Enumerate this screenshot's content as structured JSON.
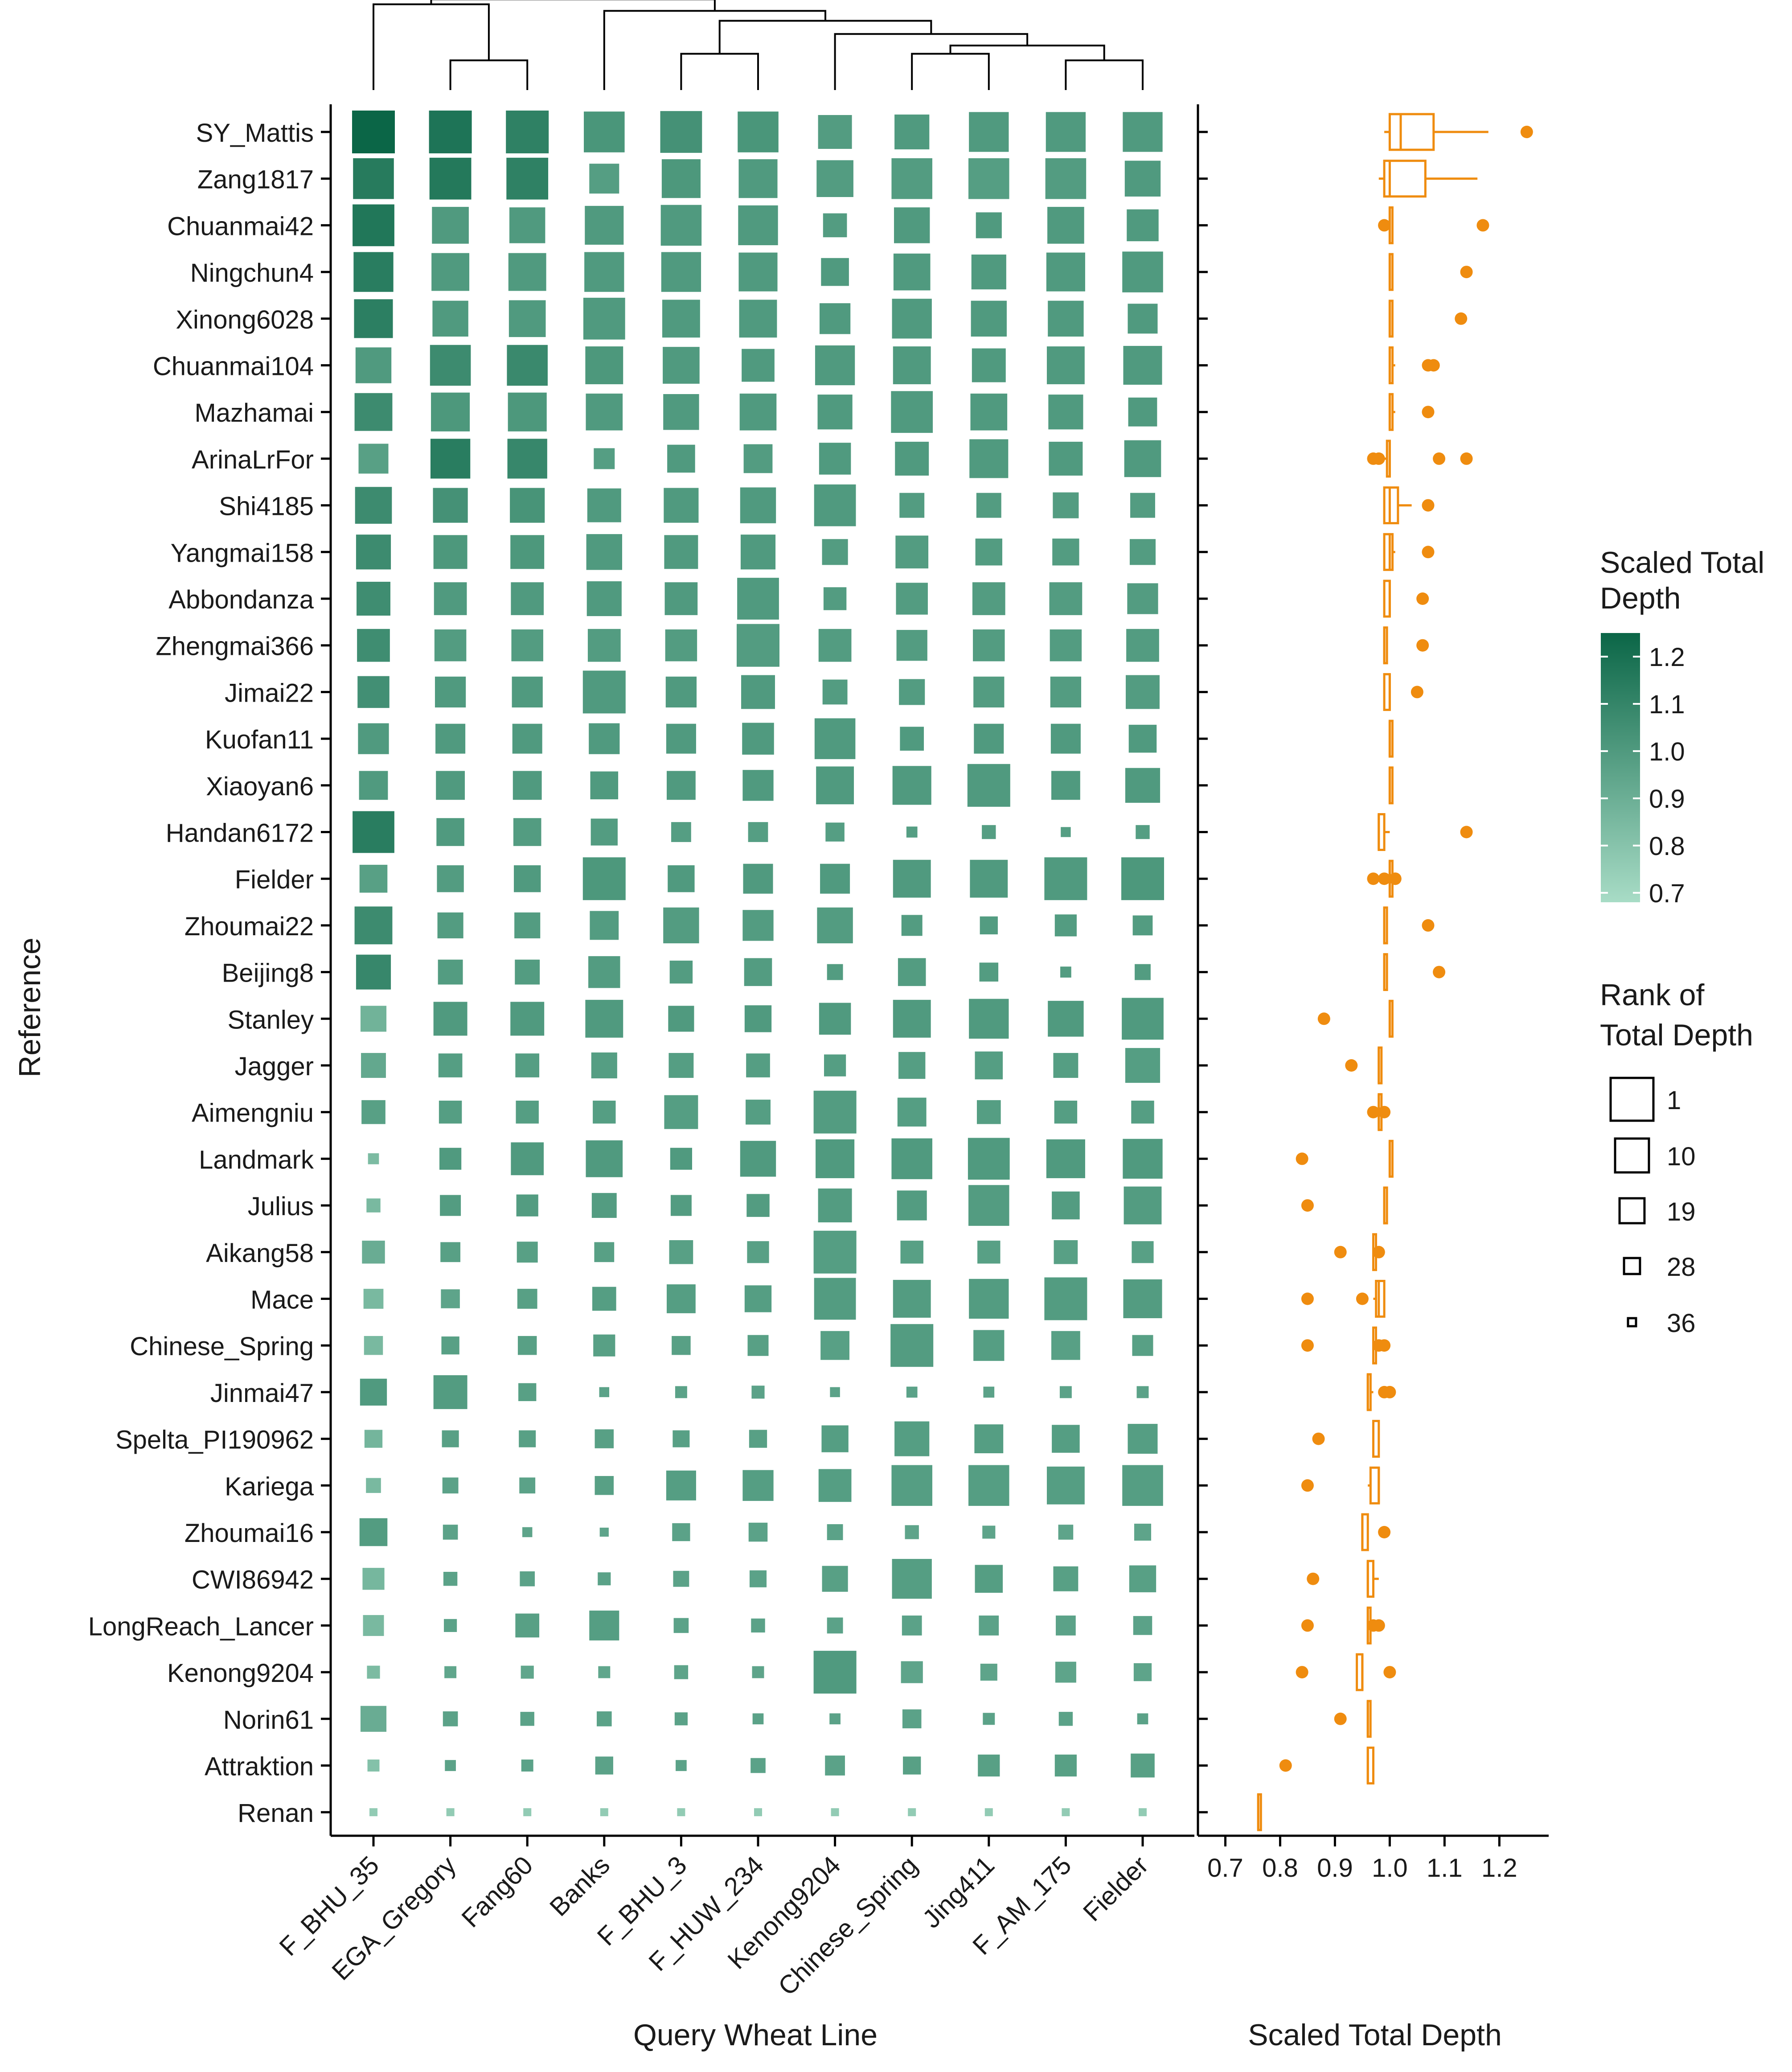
{
  "chart_data": {
    "type": "heatmap",
    "xlabel": "Query Wheat Line",
    "ylabel": "Reference",
    "queries": [
      "F_BHU_35",
      "EGA_Gregory",
      "Fang60",
      "Banks",
      "F_BHU_3",
      "F_HUW_234",
      "Kenong9204",
      "Chinese_Spring",
      "Jing411",
      "F_AM_175",
      "Fielder"
    ],
    "references": [
      "SY_Mattis",
      "Zang1817",
      "Chuanmai42",
      "Ningchun4",
      "Xinong6028",
      "Chuanmai104",
      "Mazhamai",
      "ArinaLrFor",
      "Shi4185",
      "Yangmai158",
      "Abbondanza",
      "Zhengmai366",
      "Jimai22",
      "Kuofan11",
      "Xiaoyan6",
      "Handan6172",
      "Fielder",
      "Zhoumai22",
      "Beijing8",
      "Stanley",
      "Jagger",
      "Aimengniu",
      "Landmark",
      "Julius",
      "Aikang58",
      "Mace",
      "Chinese_Spring",
      "Jinmai47",
      "Spelta_PI190962",
      "Kariega",
      "Zhoumai16",
      "CWI86942",
      "LongReach_Lancer",
      "Kenong9204",
      "Norin61",
      "Attraktion",
      "Renan"
    ],
    "dendrogram": [
      [
        0,
        2.6
      ],
      [
        1,
        0.9
      ],
      [
        2,
        0.9
      ],
      [
        3,
        2.4
      ],
      [
        4,
        1.1
      ],
      [
        5,
        1.1
      ],
      [
        6,
        1.7
      ],
      [
        7,
        1.1
      ],
      [
        8,
        1.1
      ],
      [
        9,
        0.9
      ],
      [
        10,
        0.9
      ],
      [
        11,
        1.6
      ],
      [
        12,
        1.55
      ],
      [
        13,
        1.35
      ],
      [
        14,
        2.25
      ],
      [
        15,
        2.35
      ],
      [
        16,
        2.5
      ]
    ],
    "color_legend": {
      "title": "Scaled Total Depth",
      "ticks": [
        0.7,
        0.8,
        0.9,
        1.0,
        1.1,
        1.2
      ],
      "range": [
        0.68,
        1.25
      ],
      "low_color": "#a8dcc6",
      "high_color": "#0b6647"
    },
    "size_legend": {
      "title": "Rank of Total Depth",
      "ticks": [
        1,
        10,
        19,
        28,
        36
      ]
    },
    "values": [
      [
        1.25,
        1.18,
        1.12,
        1.02,
        1.04,
        1.02,
        0.99,
        1.0,
        1.0,
        1.0,
        1.0
      ],
      [
        1.15,
        1.16,
        1.12,
        0.98,
        1.01,
        1.0,
        0.99,
        0.99,
        0.98,
        0.99,
        1.0
      ],
      [
        1.17,
        1.0,
        1.0,
        1.0,
        1.0,
        1.0,
        0.99,
        1.0,
        1.0,
        1.0,
        1.0
      ],
      [
        1.14,
        1.0,
        1.0,
        1.0,
        1.0,
        1.0,
        1.0,
        1.0,
        1.0,
        1.0,
        1.0
      ],
      [
        1.13,
        1.0,
        1.0,
        1.0,
        1.0,
        1.0,
        1.0,
        1.0,
        1.0,
        1.0,
        1.0
      ],
      [
        1.0,
        1.07,
        1.08,
        1.01,
        1.0,
        1.0,
        1.0,
        1.0,
        1.0,
        1.0,
        1.0
      ],
      [
        1.07,
        1.01,
        1.01,
        1.0,
        1.0,
        1.0,
        1.0,
        1.0,
        1.0,
        1.0,
        1.0
      ],
      [
        0.97,
        1.14,
        1.09,
        0.98,
        1.0,
        0.99,
        1.0,
        1.0,
        1.0,
        1.0,
        1.0
      ],
      [
        1.07,
        1.04,
        1.03,
        1.0,
        1.0,
        1.0,
        1.0,
        0.99,
        0.99,
        0.99,
        0.99
      ],
      [
        1.07,
        1.01,
        1.01,
        1.0,
        1.0,
        1.0,
        0.99,
        0.99,
        0.99,
        0.99,
        0.99
      ],
      [
        1.06,
        1.0,
        1.0,
        1.0,
        1.0,
        1.0,
        0.99,
        0.99,
        0.99,
        0.99,
        0.99
      ],
      [
        1.06,
        0.99,
        0.99,
        0.99,
        0.99,
        0.99,
        0.99,
        0.99,
        0.99,
        0.99,
        0.99
      ],
      [
        1.05,
        1.0,
        1.0,
        1.0,
        1.0,
        1.0,
        0.99,
        0.99,
        0.99,
        0.99,
        0.99
      ],
      [
        1.0,
        1.0,
        1.0,
        1.0,
        1.0,
        1.0,
        1.0,
        1.0,
        1.0,
        1.0,
        1.0
      ],
      [
        1.0,
        1.0,
        1.0,
        1.0,
        1.0,
        1.0,
        1.0,
        1.0,
        1.0,
        1.0,
        1.0
      ],
      [
        1.14,
        1.0,
        0.99,
        0.99,
        0.98,
        0.98,
        0.98,
        0.98,
        0.98,
        0.98,
        0.98
      ],
      [
        0.97,
        0.99,
        1.0,
        1.01,
        1.0,
        1.0,
        1.0,
        1.0,
        1.0,
        1.0,
        1.01
      ],
      [
        1.07,
        0.99,
        0.99,
        0.99,
        0.99,
        0.99,
        0.99,
        0.99,
        0.99,
        0.99,
        0.99
      ],
      [
        1.09,
        0.99,
        0.99,
        0.99,
        0.99,
        0.99,
        0.99,
        0.99,
        0.99,
        0.99,
        0.99
      ],
      [
        0.88,
        1.0,
        1.0,
        1.0,
        1.0,
        1.0,
        1.0,
        1.0,
        1.0,
        1.0,
        1.0
      ],
      [
        0.93,
        0.98,
        0.98,
        0.98,
        0.98,
        0.98,
        0.98,
        0.98,
        0.98,
        0.98,
        0.98
      ],
      [
        0.97,
        0.98,
        0.98,
        0.98,
        0.98,
        0.98,
        0.99,
        0.98,
        0.98,
        0.98,
        0.98
      ],
      [
        0.84,
        1.0,
        1.0,
        1.0,
        1.0,
        1.0,
        1.0,
        1.0,
        1.0,
        1.0,
        1.0
      ],
      [
        0.85,
        0.99,
        0.99,
        0.99,
        0.99,
        0.99,
        0.99,
        0.99,
        0.99,
        0.99,
        0.99
      ],
      [
        0.91,
        0.97,
        0.97,
        0.97,
        0.97,
        0.97,
        0.98,
        0.97,
        0.97,
        0.97,
        0.97
      ],
      [
        0.85,
        0.95,
        0.97,
        0.98,
        0.98,
        0.98,
        0.99,
        0.99,
        0.99,
        0.99,
        0.99
      ],
      [
        0.85,
        0.97,
        0.97,
        0.97,
        0.97,
        0.97,
        0.97,
        0.99,
        0.98,
        0.97,
        0.97
      ],
      [
        1.0,
        0.99,
        0.97,
        0.96,
        0.96,
        0.96,
        0.96,
        0.96,
        0.96,
        0.96,
        0.96
      ],
      [
        0.87,
        0.97,
        0.97,
        0.97,
        0.97,
        0.97,
        0.98,
        0.98,
        0.98,
        0.98,
        0.98
      ],
      [
        0.85,
        0.96,
        0.96,
        0.97,
        0.98,
        0.98,
        0.98,
        0.98,
        0.98,
        0.98,
        0.98
      ],
      [
        0.99,
        0.96,
        0.95,
        0.95,
        0.96,
        0.96,
        0.96,
        0.95,
        0.95,
        0.95,
        0.95
      ],
      [
        0.86,
        0.96,
        0.96,
        0.96,
        0.96,
        0.96,
        0.97,
        0.98,
        0.98,
        0.97,
        0.97
      ],
      [
        0.85,
        0.96,
        0.97,
        0.98,
        0.96,
        0.96,
        0.96,
        0.96,
        0.96,
        0.96,
        0.96
      ],
      [
        0.84,
        0.94,
        0.94,
        0.94,
        0.95,
        0.95,
        1.0,
        0.95,
        0.95,
        0.95,
        0.95
      ],
      [
        0.91,
        0.96,
        0.96,
        0.96,
        0.96,
        0.96,
        0.96,
        0.96,
        0.96,
        0.96,
        0.96
      ],
      [
        0.81,
        0.96,
        0.96,
        0.96,
        0.96,
        0.96,
        0.96,
        0.97,
        0.97,
        0.97,
        0.97
      ],
      [
        0.76,
        0.76,
        0.76,
        0.76,
        0.76,
        0.76,
        0.76,
        0.76,
        0.76,
        0.76,
        0.76
      ]
    ],
    "ranks": [
      [
        1,
        1,
        1,
        3,
        2,
        3,
        10,
        9,
        4,
        4,
        4
      ],
      [
        3,
        2,
        2,
        14,
        5,
        5,
        7,
        3,
        3,
        3,
        8
      ],
      [
        2,
        7,
        8,
        5,
        3,
        4,
        20,
        8,
        18,
        7,
        12
      ],
      [
        4,
        6,
        6,
        4,
        4,
        5,
        16,
        7,
        9,
        5,
        3
      ],
      [
        5,
        8,
        7,
        2,
        6,
        6,
        13,
        4,
        8,
        8,
        14
      ],
      [
        8,
        3,
        3,
        6,
        7,
        11,
        4,
        6,
        10,
        6,
        5
      ],
      [
        6,
        5,
        5,
        7,
        8,
        7,
        9,
        2,
        7,
        9,
        15
      ],
      [
        14,
        4,
        4,
        23,
        16,
        15,
        12,
        10,
        5,
        10,
        7
      ],
      [
        7,
        9,
        9,
        10,
        9,
        8,
        2,
        19,
        19,
        18,
        19
      ],
      [
        9,
        10,
        10,
        8,
        10,
        9,
        18,
        11,
        17,
        17,
        18
      ],
      [
        10,
        11,
        11,
        9,
        11,
        2,
        21,
        12,
        11,
        11,
        13
      ],
      [
        11,
        12,
        12,
        11,
        12,
        1,
        11,
        13,
        12,
        12,
        11
      ],
      [
        12,
        13,
        13,
        1,
        13,
        10,
        19,
        18,
        13,
        13,
        10
      ],
      [
        13,
        14,
        14,
        13,
        14,
        12,
        3,
        20,
        14,
        14,
        16
      ],
      [
        15,
        15,
        15,
        16,
        15,
        13,
        6,
        5,
        1,
        15,
        9
      ],
      [
        2,
        16,
        16,
        17,
        24,
        24,
        25,
        33,
        30,
        34,
        30
      ],
      [
        16,
        17,
        17,
        1,
        17,
        14,
        14,
        6,
        6,
        1,
        1
      ],
      [
        6,
        18,
        18,
        15,
        8,
        13,
        8,
        23,
        26,
        22,
        24
      ],
      [
        9,
        19,
        19,
        12,
        21,
        16,
        28,
        16,
        25,
        33,
        28
      ],
      [
        18,
        10,
        10,
        6,
        18,
        17,
        12,
        6,
        4,
        8,
        2
      ],
      [
        19,
        20,
        20,
        18,
        19,
        20,
        22,
        17,
        16,
        19,
        9
      ],
      [
        20,
        21,
        21,
        21,
        10,
        19,
        1,
        15,
        20,
        21,
        21
      ],
      [
        33,
        22,
        11,
        7,
        22,
        8,
        5,
        3,
        2,
        5,
        4
      ],
      [
        30,
        23,
        22,
        19,
        23,
        21,
        10,
        14,
        3,
        16,
        6
      ],
      [
        21,
        24,
        23,
        24,
        20,
        22,
        1,
        21,
        21,
        20,
        22
      ],
      [
        24,
        25,
        24,
        20,
        15,
        17,
        2,
        6,
        4,
        1,
        5
      ],
      [
        25,
        26,
        25,
        22,
        25,
        23,
        15,
        1,
        13,
        15,
        23
      ],
      [
        17,
        10,
        26,
        34,
        32,
        31,
        34,
        33,
        33,
        32,
        32
      ],
      [
        26,
        27,
        27,
        25,
        27,
        26,
        17,
        9,
        15,
        16,
        14
      ],
      [
        29,
        28,
        28,
        25,
        14,
        13,
        11,
        3,
        3,
        6,
        3
      ],
      [
        16,
        29,
        34,
        35,
        26,
        25,
        28,
        30,
        31,
        29,
        27
      ],
      [
        22,
        30,
        29,
        31,
        28,
        27,
        18,
        4,
        16,
        19,
        17
      ],
      [
        23,
        31,
        20,
        14,
        29,
        30,
        28,
        24,
        24,
        24,
        25
      ],
      [
        31,
        32,
        31,
        32,
        30,
        32,
        1,
        22,
        27,
        23,
        26
      ],
      [
        18,
        29,
        30,
        29,
        31,
        33,
        33,
        25,
        32,
        30,
        33
      ],
      [
        32,
        33,
        32,
        26,
        33,
        29,
        24,
        26,
        22,
        22,
        20
      ],
      [
        36,
        36,
        36,
        36,
        36,
        36,
        36,
        36,
        36,
        36,
        36
      ]
    ],
    "box_panel": {
      "xlabel": "Scaled Total Depth",
      "xlim": [
        0.65,
        1.29
      ],
      "ticks": [
        0.7,
        0.8,
        0.9,
        1.0,
        1.1,
        1.2
      ]
    }
  }
}
